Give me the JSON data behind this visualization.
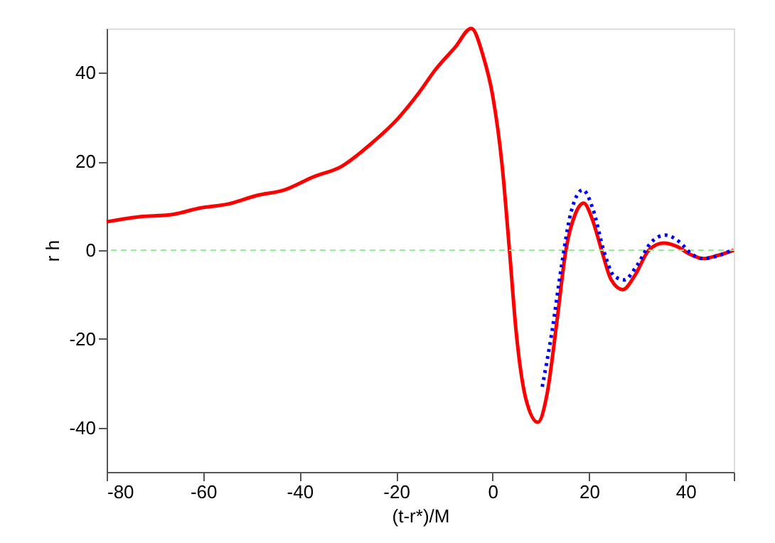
{
  "chart_data": {
    "type": "line",
    "xlabel": "(t-r*)/M",
    "ylabel": "r h",
    "xlim": [
      -80,
      50
    ],
    "ylim": [
      -50,
      50
    ],
    "xticks": [
      -80,
      -60,
      -40,
      -20,
      0,
      20,
      40,
      {
        "value": 50,
        "label": null
      }
    ],
    "yticks": [
      -40,
      -20,
      0,
      20,
      40
    ],
    "grid": false,
    "marker": "none",
    "ref_lines": [
      {
        "axis": "y",
        "value": 0,
        "color": "#90ee90",
        "line_style": "dashed"
      }
    ],
    "series": [
      {
        "color": "#ff0000",
        "line_style": "solid",
        "x": [
          -80,
          -73.5,
          -66.6,
          -60.7,
          -54.9,
          -49,
          -43.1,
          -37.2,
          -31.3,
          -25.4,
          -19.6,
          -15.6,
          -11.7,
          -7.8,
          -4.4,
          -1.9,
          0,
          2.0,
          3.5,
          4.9,
          6.9,
          9.4,
          11.3,
          13.3,
          15.2,
          17.2,
          18.9,
          20.6,
          22.6,
          24.6,
          27,
          29.5,
          32.4,
          35.4,
          38.3,
          40.7,
          43.7,
          46.6,
          50
        ],
        "values": [
          6.4,
          7.5,
          8.0,
          9.5,
          10.4,
          12.3,
          13.6,
          16.5,
          18.9,
          23.8,
          29.7,
          35,
          40.9,
          45.7,
          50,
          43.6,
          35,
          18.9,
          0,
          -18.5,
          -33.5,
          -38.8,
          -32.4,
          -16.4,
          0,
          8.3,
          10.6,
          7.2,
          0,
          -6.7,
          -8.9,
          -5.7,
          0,
          1.6,
          0.8,
          -0.8,
          -1.9,
          -1.2,
          0
        ]
      },
      {
        "color": "#0000ff",
        "line_style": "dotted",
        "x": [
          10.3,
          12.3,
          14.3,
          16.2,
          18.7,
          20.8,
          23.1,
          25.1,
          27.3,
          29.9,
          32.9,
          35.8,
          38.8,
          41.2,
          43.7,
          46.6,
          49.6
        ],
        "values": [
          -30.8,
          -18.5,
          -3.5,
          8.3,
          13.6,
          9.3,
          -0.3,
          -5.7,
          -6.7,
          -3.5,
          1.8,
          3.4,
          1.8,
          -0.8,
          -1.9,
          -1.3,
          0
        ]
      }
    ]
  }
}
